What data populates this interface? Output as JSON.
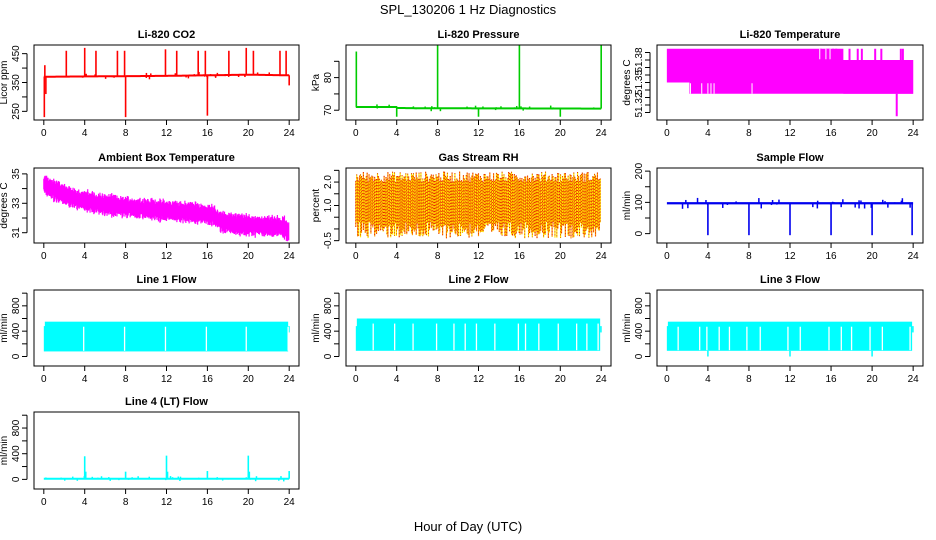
{
  "figure": {
    "title": "SPL_130206  1 Hz Diagnostics",
    "xlabel": "Hour of Day (UTC)"
  },
  "chart_data": [
    {
      "id": "li820-co2",
      "type": "line",
      "title": "Li-820 CO2",
      "xlabel": "",
      "ylabel": "Licor ppm",
      "color": "#ff0000",
      "xlim": [
        0,
        24
      ],
      "ylim": [
        220,
        480
      ],
      "xticks": [
        0,
        4,
        8,
        12,
        16,
        20,
        24
      ],
      "yticks": [
        250,
        300,
        350,
        400,
        450
      ],
      "ytick_labels": [
        "250",
        "",
        "350",
        "",
        "450"
      ],
      "style": "baseline_spikes",
      "baseline": [
        [
          0,
          370
        ],
        [
          8,
          372
        ],
        [
          12,
          373
        ],
        [
          16,
          375
        ],
        [
          20,
          377
        ],
        [
          24,
          375
        ]
      ],
      "band": 4,
      "spikes": [
        [
          0.05,
          230
        ],
        [
          0.1,
          410
        ],
        [
          0.2,
          310
        ],
        [
          2.2,
          460
        ],
        [
          4.0,
          470
        ],
        [
          5.1,
          460
        ],
        [
          7.2,
          460
        ],
        [
          7.9,
          460
        ],
        [
          8.0,
          230
        ],
        [
          11.9,
          465
        ],
        [
          13.0,
          460
        ],
        [
          15.1,
          460
        ],
        [
          15.8,
          460
        ],
        [
          16.0,
          235
        ],
        [
          18.1,
          460
        ],
        [
          19.8,
          470
        ],
        [
          20.5,
          460
        ],
        [
          23.1,
          460
        ],
        [
          23.7,
          460
        ],
        [
          24,
          340
        ]
      ]
    },
    {
      "id": "li820-pressure",
      "type": "line",
      "title": "Li-820 Pressure",
      "xlabel": "",
      "ylabel": "kPa",
      "color": "#00cc00",
      "xlim": [
        0,
        24
      ],
      "ylim": [
        67,
        90
      ],
      "xticks": [
        0,
        4,
        8,
        12,
        16,
        20,
        24
      ],
      "yticks": [
        70,
        75,
        80,
        85
      ],
      "ytick_labels": [
        "70",
        "",
        "80",
        ""
      ],
      "style": "baseline_spikes",
      "baseline": [
        [
          0,
          71
        ],
        [
          4,
          71
        ],
        [
          4.01,
          70.7
        ],
        [
          6.5,
          70.6
        ],
        [
          24,
          70.5
        ]
      ],
      "band": 0.3,
      "spikes": [
        [
          0.05,
          88
        ],
        [
          4.0,
          68
        ],
        [
          8.0,
          90
        ],
        [
          12.0,
          68
        ],
        [
          16.0,
          90
        ],
        [
          20.0,
          68
        ],
        [
          24.0,
          90
        ]
      ]
    },
    {
      "id": "li820-temperature",
      "type": "area",
      "title": "Li-820 Temperature",
      "xlabel": "",
      "ylabel": "degrees C",
      "color": "#ff00ff",
      "xlim": [
        0,
        24
      ],
      "ylim": [
        51.3,
        51.4
      ],
      "xticks": [
        0,
        4,
        8,
        12,
        16,
        20,
        24
      ],
      "yticks": [
        51.31,
        51.32,
        51.33,
        51.34,
        51.35,
        51.36,
        51.37,
        51.38,
        51.39
      ],
      "ytick_labels": [
        "",
        "51.32",
        "",
        "",
        "51.35",
        "",
        "",
        "51.38",
        ""
      ],
      "style": "band",
      "band_segments": [
        {
          "x0": 0,
          "x1": 17.2,
          "lo": 51.35,
          "hi": 51.395
        },
        {
          "x0": 2.2,
          "x1": 24,
          "lo": 51.335,
          "hi": 51.38
        },
        {
          "x0": 17.2,
          "x1": 24,
          "lo": 51.335,
          "hi": 51.38
        }
      ],
      "spikes_up": [
        15.0,
        15.6,
        15.8,
        16.2,
        16.5,
        17.8,
        18.6,
        19.0,
        20.3,
        20.9,
        22.8,
        23.0
      ],
      "spikes_down": [
        [
          22.4,
          51.305
        ]
      ]
    },
    {
      "id": "ambient-box-temperature",
      "type": "area",
      "title": "Ambient Box Temperature",
      "xlabel": "",
      "ylabel": "degrees C",
      "color": "#ff00ff",
      "xlim": [
        0,
        24
      ],
      "ylim": [
        30.3,
        35.4
      ],
      "xticks": [
        0,
        4,
        8,
        12,
        16,
        20,
        24
      ],
      "yticks": [
        31,
        32,
        33,
        34,
        35
      ],
      "ytick_labels": [
        "31",
        "",
        "33",
        "",
        "35"
      ],
      "style": "noise_band",
      "center": [
        [
          0,
          34.3
        ],
        [
          1,
          33.9
        ],
        [
          3,
          33.3
        ],
        [
          6,
          32.9
        ],
        [
          10,
          32.6
        ],
        [
          14,
          32.4
        ],
        [
          16.5,
          32.2
        ],
        [
          17.5,
          31.7
        ],
        [
          20,
          31.5
        ],
        [
          23.5,
          31.4
        ],
        [
          24,
          31.0
        ]
      ],
      "amplitude": 0.55
    },
    {
      "id": "gas-stream-rh",
      "type": "area",
      "title": "Gas Stream RH",
      "xlabel": "",
      "ylabel": "percent",
      "color": "#ff9900",
      "color2": "#ffee00",
      "color3": "#dd0000",
      "xlim": [
        0,
        24
      ],
      "ylim": [
        -0.6,
        2.6
      ],
      "xticks": [
        0,
        4,
        8,
        12,
        16,
        20,
        24
      ],
      "yticks": [
        -0.5,
        0.0,
        0.5,
        1.0,
        1.5,
        2.0,
        2.5
      ],
      "ytick_labels": [
        "-0.5",
        "",
        "",
        "1.0",
        "",
        "2.0",
        ""
      ],
      "style": "rh_band",
      "lo": 0.3,
      "hi": 2.0,
      "lo_ext": -0.4,
      "hi_ext": 2.45
    },
    {
      "id": "sample-flow",
      "type": "line",
      "title": "Sample Flow",
      "xlabel": "",
      "ylabel": "ml/min",
      "color": "#0000ee",
      "xlim": [
        0,
        24
      ],
      "ylim": [
        -30,
        210
      ],
      "xticks": [
        0,
        4,
        8,
        12,
        16,
        20,
        24
      ],
      "yticks": [
        0,
        50,
        100,
        150,
        200
      ],
      "ytick_labels": [
        "0",
        "",
        "100",
        "",
        "200"
      ],
      "style": "baseline_spikes",
      "baseline": [
        [
          0,
          97
        ],
        [
          24,
          97
        ]
      ],
      "band": 6,
      "spikes": [
        [
          4.0,
          -5
        ],
        [
          8.0,
          -5
        ],
        [
          12.0,
          -5
        ],
        [
          16.0,
          -5
        ],
        [
          20.0,
          -5
        ],
        [
          23.9,
          -5
        ]
      ]
    },
    {
      "id": "line-1-flow",
      "type": "area",
      "title": "Line 1 Flow",
      "xlabel": "",
      "ylabel": "ml/min",
      "color": "#00ffff",
      "xlim": [
        0,
        24
      ],
      "ylim": [
        -150,
        1050
      ],
      "xticks": [
        0,
        4,
        8,
        12,
        16,
        20,
        24
      ],
      "yticks": [
        0,
        200,
        400,
        600,
        800,
        1000
      ],
      "ytick_labels": [
        "0",
        "",
        "400",
        "",
        "800",
        ""
      ],
      "style": "flow_band",
      "lo": 80,
      "hi": 550,
      "gaps": [
        3.9,
        7.9,
        11.9,
        15.9,
        19.8,
        23.9
      ]
    },
    {
      "id": "line-2-flow",
      "type": "area",
      "title": "Line 2 Flow",
      "xlabel": "",
      "ylabel": "ml/min",
      "color": "#00ffff",
      "xlim": [
        0,
        24
      ],
      "ylim": [
        -150,
        1050
      ],
      "xticks": [
        0,
        4,
        8,
        12,
        16,
        20,
        24
      ],
      "yticks": [
        0,
        200,
        400,
        600,
        800,
        1000
      ],
      "ytick_labels": [
        "0",
        "",
        "400",
        "",
        "800",
        ""
      ],
      "style": "flow_band",
      "lo": 90,
      "hi": 600,
      "gaps": [
        1.7,
        3.8,
        5.6,
        7.9,
        9.6,
        10.7,
        11.8,
        13.6,
        15.9,
        16.6,
        17.9,
        19.8,
        21.6,
        22.6,
        23.7
      ]
    },
    {
      "id": "line-3-flow",
      "type": "area",
      "title": "Line 3 Flow",
      "xlabel": "",
      "ylabel": "ml/min",
      "color": "#00ffff",
      "xlim": [
        0,
        24
      ],
      "ylim": [
        -150,
        1050
      ],
      "xticks": [
        0,
        4,
        8,
        12,
        16,
        20,
        24
      ],
      "yticks": [
        0,
        200,
        400,
        600,
        800,
        1000
      ],
      "ytick_labels": [
        "0",
        "",
        "400",
        "",
        "800",
        ""
      ],
      "style": "flow_band",
      "lo": 90,
      "hi": 550,
      "gaps": [
        1.1,
        3.2,
        3.9,
        5.1,
        6.1,
        7.8,
        9.1,
        11.8,
        13.0,
        15.8,
        17.0,
        18.0,
        19.8,
        21.0,
        23.7
      ],
      "dips": [
        4.0,
        12.0,
        20.0
      ]
    },
    {
      "id": "line-4-lt-flow",
      "type": "line",
      "title": "Line 4 (LT) Flow",
      "xlabel": "",
      "ylabel": "ml/min",
      "color": "#00ffff",
      "xlim": [
        0,
        24
      ],
      "ylim": [
        -150,
        1050
      ],
      "xticks": [
        0,
        4,
        8,
        12,
        16,
        20,
        24
      ],
      "yticks": [
        0,
        200,
        400,
        600,
        800,
        1000
      ],
      "ytick_labels": [
        "0",
        "",
        "400",
        "",
        "800",
        ""
      ],
      "style": "baseline_spikes",
      "baseline": [
        [
          0,
          10
        ],
        [
          24,
          10
        ]
      ],
      "band": 14,
      "spikes": [
        [
          4.0,
          360
        ],
        [
          4.1,
          120
        ],
        [
          8.0,
          120
        ],
        [
          12.0,
          370
        ],
        [
          12.1,
          120
        ],
        [
          16.0,
          130
        ],
        [
          20.0,
          370
        ],
        [
          20.1,
          120
        ],
        [
          24.0,
          130
        ]
      ]
    }
  ]
}
